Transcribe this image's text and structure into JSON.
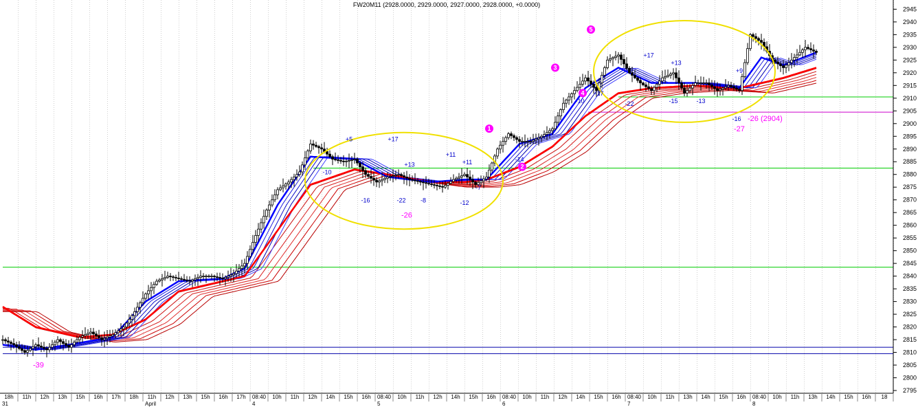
{
  "title": "FW20M11 (2928.0000, 2929.0000, 2927.0000, 2928.0000, +0.0000)",
  "chart_data": {
    "type": "candlestick",
    "title": "FW20M11 (2928.0000, 2929.0000, 2927.0000, 2928.0000, +0.0000)",
    "ylim": [
      2795,
      2947
    ],
    "yticks": [
      2795,
      2800,
      2805,
      2810,
      2815,
      2820,
      2825,
      2830,
      2835,
      2840,
      2845,
      2850,
      2855,
      2860,
      2865,
      2870,
      2875,
      2880,
      2885,
      2890,
      2895,
      2900,
      2905,
      2910,
      2915,
      2920,
      2925,
      2930,
      2935,
      2940,
      2945
    ],
    "xticks": [
      "18h",
      "11h",
      "12h",
      "13h",
      "15h",
      "16h",
      "17h",
      "18h",
      "11h",
      "12h",
      "13h",
      "15h",
      "16h",
      "17h",
      "08:40",
      "10h",
      "11h",
      "12h",
      "14h",
      "15h",
      "16h",
      "08:40",
      "10h",
      "11h",
      "12h",
      "14h",
      "15h",
      "16h",
      "08:40",
      "10h",
      "11h",
      "12h",
      "14h",
      "15h",
      "16h",
      "08:40",
      "10h",
      "11h",
      "13h",
      "14h",
      "15h",
      "16h",
      "08:40",
      "10h",
      "11h",
      "13h",
      "14h",
      "15h",
      "16h",
      "18"
    ],
    "date_labels": [
      "31",
      "April",
      "4",
      "5",
      "6",
      "7",
      "8"
    ],
    "grid": true,
    "price_path": [
      {
        "x": 0,
        "y": 2815
      },
      {
        "x": 4,
        "y": 2813
      },
      {
        "x": 8,
        "y": 2810
      },
      {
        "x": 12,
        "y": 2813
      },
      {
        "x": 16,
        "y": 2811
      },
      {
        "x": 20,
        "y": 2815
      },
      {
        "x": 24,
        "y": 2812
      },
      {
        "x": 28,
        "y": 2816
      },
      {
        "x": 32,
        "y": 2818
      },
      {
        "x": 36,
        "y": 2815
      },
      {
        "x": 40,
        "y": 2817
      },
      {
        "x": 44,
        "y": 2820
      },
      {
        "x": 48,
        "y": 2826
      },
      {
        "x": 52,
        "y": 2833
      },
      {
        "x": 56,
        "y": 2838
      },
      {
        "x": 60,
        "y": 2840
      },
      {
        "x": 64,
        "y": 2839
      },
      {
        "x": 68,
        "y": 2838
      },
      {
        "x": 72,
        "y": 2840
      },
      {
        "x": 76,
        "y": 2840
      },
      {
        "x": 80,
        "y": 2839
      },
      {
        "x": 84,
        "y": 2841
      },
      {
        "x": 88,
        "y": 2845
      },
      {
        "x": 92,
        "y": 2856
      },
      {
        "x": 96,
        "y": 2866
      },
      {
        "x": 100,
        "y": 2874
      },
      {
        "x": 104,
        "y": 2877
      },
      {
        "x": 108,
        "y": 2881
      },
      {
        "x": 112,
        "y": 2892
      },
      {
        "x": 116,
        "y": 2890
      },
      {
        "x": 120,
        "y": 2886
      },
      {
        "x": 124,
        "y": 2885
      },
      {
        "x": 128,
        "y": 2886
      },
      {
        "x": 132,
        "y": 2880
      },
      {
        "x": 136,
        "y": 2877
      },
      {
        "x": 140,
        "y": 2879
      },
      {
        "x": 144,
        "y": 2880
      },
      {
        "x": 148,
        "y": 2878
      },
      {
        "x": 152,
        "y": 2877
      },
      {
        "x": 156,
        "y": 2876
      },
      {
        "x": 160,
        "y": 2875
      },
      {
        "x": 164,
        "y": 2878
      },
      {
        "x": 168,
        "y": 2880
      },
      {
        "x": 172,
        "y": 2876
      },
      {
        "x": 176,
        "y": 2879
      },
      {
        "x": 180,
        "y": 2890
      },
      {
        "x": 184,
        "y": 2896
      },
      {
        "x": 188,
        "y": 2893
      },
      {
        "x": 192,
        "y": 2893
      },
      {
        "x": 196,
        "y": 2895
      },
      {
        "x": 200,
        "y": 2898
      },
      {
        "x": 204,
        "y": 2908
      },
      {
        "x": 208,
        "y": 2913
      },
      {
        "x": 212,
        "y": 2918
      },
      {
        "x": 216,
        "y": 2913
      },
      {
        "x": 220,
        "y": 2925
      },
      {
        "x": 224,
        "y": 2927
      },
      {
        "x": 228,
        "y": 2920
      },
      {
        "x": 232,
        "y": 2916
      },
      {
        "x": 236,
        "y": 2913
      },
      {
        "x": 240,
        "y": 2918
      },
      {
        "x": 244,
        "y": 2920
      },
      {
        "x": 248,
        "y": 2912
      },
      {
        "x": 252,
        "y": 2916
      },
      {
        "x": 256,
        "y": 2916
      },
      {
        "x": 260,
        "y": 2913
      },
      {
        "x": 264,
        "y": 2915
      },
      {
        "x": 268,
        "y": 2913
      },
      {
        "x": 272,
        "y": 2935
      },
      {
        "x": 276,
        "y": 2932
      },
      {
        "x": 280,
        "y": 2925
      },
      {
        "x": 284,
        "y": 2922
      },
      {
        "x": 288,
        "y": 2926
      },
      {
        "x": 292,
        "y": 2930
      },
      {
        "x": 296,
        "y": 2928
      }
    ],
    "blue_ma_path": [
      {
        "x": 0,
        "y": 2813
      },
      {
        "x": 12,
        "y": 2811
      },
      {
        "x": 24,
        "y": 2813
      },
      {
        "x": 40,
        "y": 2816
      },
      {
        "x": 52,
        "y": 2830
      },
      {
        "x": 64,
        "y": 2838
      },
      {
        "x": 80,
        "y": 2839
      },
      {
        "x": 88,
        "y": 2843
      },
      {
        "x": 100,
        "y": 2868
      },
      {
        "x": 112,
        "y": 2887
      },
      {
        "x": 128,
        "y": 2886
      },
      {
        "x": 140,
        "y": 2879
      },
      {
        "x": 156,
        "y": 2877
      },
      {
        "x": 168,
        "y": 2878
      },
      {
        "x": 176,
        "y": 2878
      },
      {
        "x": 188,
        "y": 2892
      },
      {
        "x": 200,
        "y": 2896
      },
      {
        "x": 212,
        "y": 2914
      },
      {
        "x": 224,
        "y": 2922
      },
      {
        "x": 236,
        "y": 2916
      },
      {
        "x": 252,
        "y": 2916
      },
      {
        "x": 268,
        "y": 2914
      },
      {
        "x": 276,
        "y": 2926
      },
      {
        "x": 284,
        "y": 2923
      },
      {
        "x": 296,
        "y": 2928
      }
    ],
    "red_ma_path": [
      {
        "x": 0,
        "y": 2828
      },
      {
        "x": 12,
        "y": 2820
      },
      {
        "x": 28,
        "y": 2816
      },
      {
        "x": 40,
        "y": 2817
      },
      {
        "x": 52,
        "y": 2823
      },
      {
        "x": 64,
        "y": 2834
      },
      {
        "x": 80,
        "y": 2838
      },
      {
        "x": 88,
        "y": 2840
      },
      {
        "x": 100,
        "y": 2858
      },
      {
        "x": 112,
        "y": 2876
      },
      {
        "x": 128,
        "y": 2882
      },
      {
        "x": 140,
        "y": 2880
      },
      {
        "x": 156,
        "y": 2877
      },
      {
        "x": 168,
        "y": 2877
      },
      {
        "x": 176,
        "y": 2878
      },
      {
        "x": 188,
        "y": 2883
      },
      {
        "x": 200,
        "y": 2891
      },
      {
        "x": 212,
        "y": 2903
      },
      {
        "x": 224,
        "y": 2912
      },
      {
        "x": 236,
        "y": 2914
      },
      {
        "x": 252,
        "y": 2915
      },
      {
        "x": 268,
        "y": 2914
      },
      {
        "x": 276,
        "y": 2916
      },
      {
        "x": 284,
        "y": 2918
      },
      {
        "x": 296,
        "y": 2922
      }
    ],
    "hlines": [
      {
        "y": 2843.5,
        "color": "#00cc00",
        "from": 0,
        "to": 325
      },
      {
        "y": 2812,
        "color": "#0000aa",
        "from": 0,
        "to": 325
      },
      {
        "y": 2809.5,
        "color": "#0000aa",
        "from": 0,
        "to": 325
      },
      {
        "y": 2910.5,
        "color": "#00cc00",
        "from": 224,
        "to": 325
      },
      {
        "y": 2882.5,
        "color": "#00cc00",
        "from": 113,
        "to": 325
      },
      {
        "y": 2904.5,
        "color": "#cc00cc",
        "from": 213,
        "to": 325
      }
    ],
    "ellipses": [
      {
        "cx": 146,
        "cy": 2877.5,
        "rx": 36,
        "ry": 19
      },
      {
        "cx": 248,
        "cy": 2920.5,
        "rx": 33,
        "ry": 20
      }
    ],
    "blue_labels": [
      {
        "text": "+5",
        "x": 126,
        "y": 2893
      },
      {
        "text": "+17",
        "x": 142,
        "y": 2893
      },
      {
        "text": "+13",
        "x": 148,
        "y": 2883
      },
      {
        "text": "+11",
        "x": 163,
        "y": 2887
      },
      {
        "text": "+11",
        "x": 169,
        "y": 2884
      },
      {
        "text": "-10",
        "x": 118,
        "y": 2880
      },
      {
        "text": "-16",
        "x": 132,
        "y": 2869
      },
      {
        "text": "-22",
        "x": 145,
        "y": 2869
      },
      {
        "text": "-8",
        "x": 153,
        "y": 2869
      },
      {
        "text": "-12",
        "x": 168,
        "y": 2868
      },
      {
        "text": "-7",
        "x": 173,
        "y": 2874
      },
      {
        "text": "-14",
        "x": 188,
        "y": 2885
      },
      {
        "text": "+17",
        "x": 235,
        "y": 2926
      },
      {
        "text": "+13",
        "x": 245,
        "y": 2923
      },
      {
        "text": "+9",
        "x": 268,
        "y": 2920
      },
      {
        "text": "-10",
        "x": 210,
        "y": 2908
      },
      {
        "text": "-17",
        "x": 217,
        "y": 2911
      },
      {
        "text": "-22",
        "x": 228,
        "y": 2907
      },
      {
        "text": "-15",
        "x": 244,
        "y": 2908
      },
      {
        "text": "-13",
        "x": 254,
        "y": 2908
      },
      {
        "text": "-16",
        "x": 267,
        "y": 2901
      }
    ],
    "magenta_labels": [
      {
        "text": "-39",
        "x": 11,
        "y": 2804
      },
      {
        "text": "-26",
        "x": 145,
        "y": 2863
      },
      {
        "text": "-26 (2904)",
        "x": 271,
        "y": 2901
      },
      {
        "text": "-27",
        "x": 266,
        "y": 2897
      }
    ],
    "wave_markers": [
      {
        "text": "1",
        "x": 177,
        "y": 2898
      },
      {
        "text": "2",
        "x": 189,
        "y": 2883
      },
      {
        "text": "3",
        "x": 201,
        "y": 2922
      },
      {
        "text": "4",
        "x": 211,
        "y": 2912
      },
      {
        "text": "5",
        "x": 214,
        "y": 2937
      }
    ]
  }
}
